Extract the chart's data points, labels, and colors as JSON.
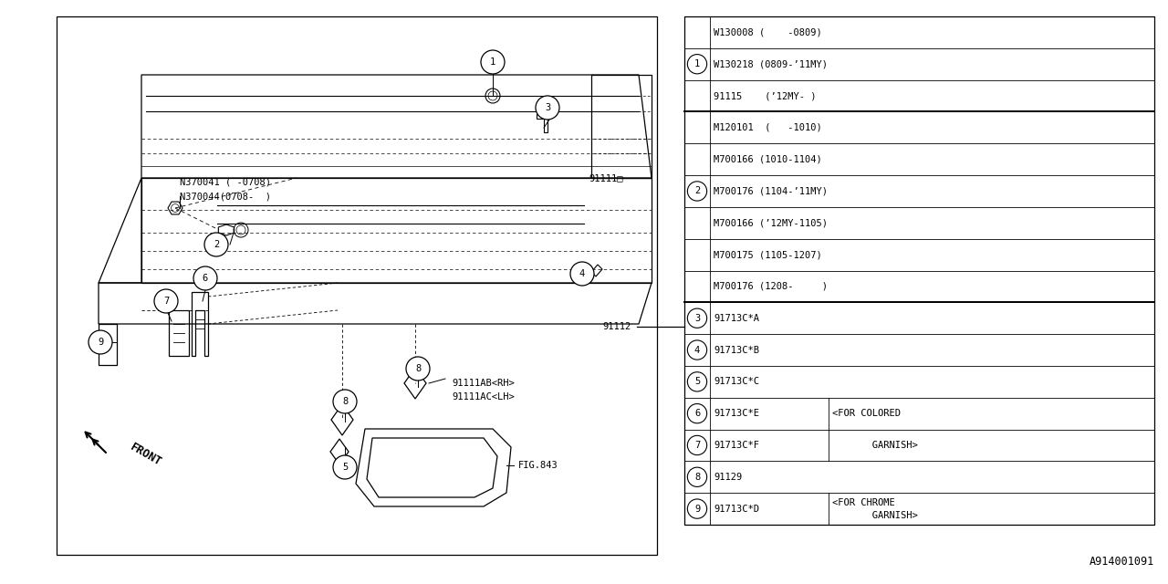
{
  "bg_color": "#ffffff",
  "figure_id": "A914001091",
  "table_rows": [
    {
      "num": "",
      "col1": "W130008 (    -0809)",
      "col2": ""
    },
    {
      "num": "1",
      "col1": "W130218 (0809-’11MY)",
      "col2": ""
    },
    {
      "num": "",
      "col1": "91115    (’12MY- )",
      "col2": ""
    },
    {
      "num": "",
      "col1": "M120101  (   -1010)",
      "col2": ""
    },
    {
      "num": "",
      "col1": "M700166 (1010-1104)",
      "col2": ""
    },
    {
      "num": "2",
      "col1": "M700176 (1104-’11MY)",
      "col2": ""
    },
    {
      "num": "",
      "col1": "M700166 (’12MY-1105)",
      "col2": ""
    },
    {
      "num": "",
      "col1": "M700175 (1105-1207)",
      "col2": ""
    },
    {
      "num": "",
      "col1": "M700176 (1208-     )",
      "col2": ""
    },
    {
      "num": "3",
      "col1": "91713C*A",
      "col2": ""
    },
    {
      "num": "4",
      "col1": "91713C*B",
      "col2": ""
    },
    {
      "num": "5",
      "col1": "91713C*C",
      "col2": ""
    },
    {
      "num": "6",
      "col1": "91713C*E",
      "col2": "<FOR COLORED"
    },
    {
      "num": "7",
      "col1": "91713C*F",
      "col2": "       GARNISH>"
    },
    {
      "num": "8",
      "col1": "91129",
      "col2": ""
    },
    {
      "num": "9",
      "col1": "91713C*D",
      "col2": "<FOR CHROME\n       GARNISH>"
    }
  ]
}
